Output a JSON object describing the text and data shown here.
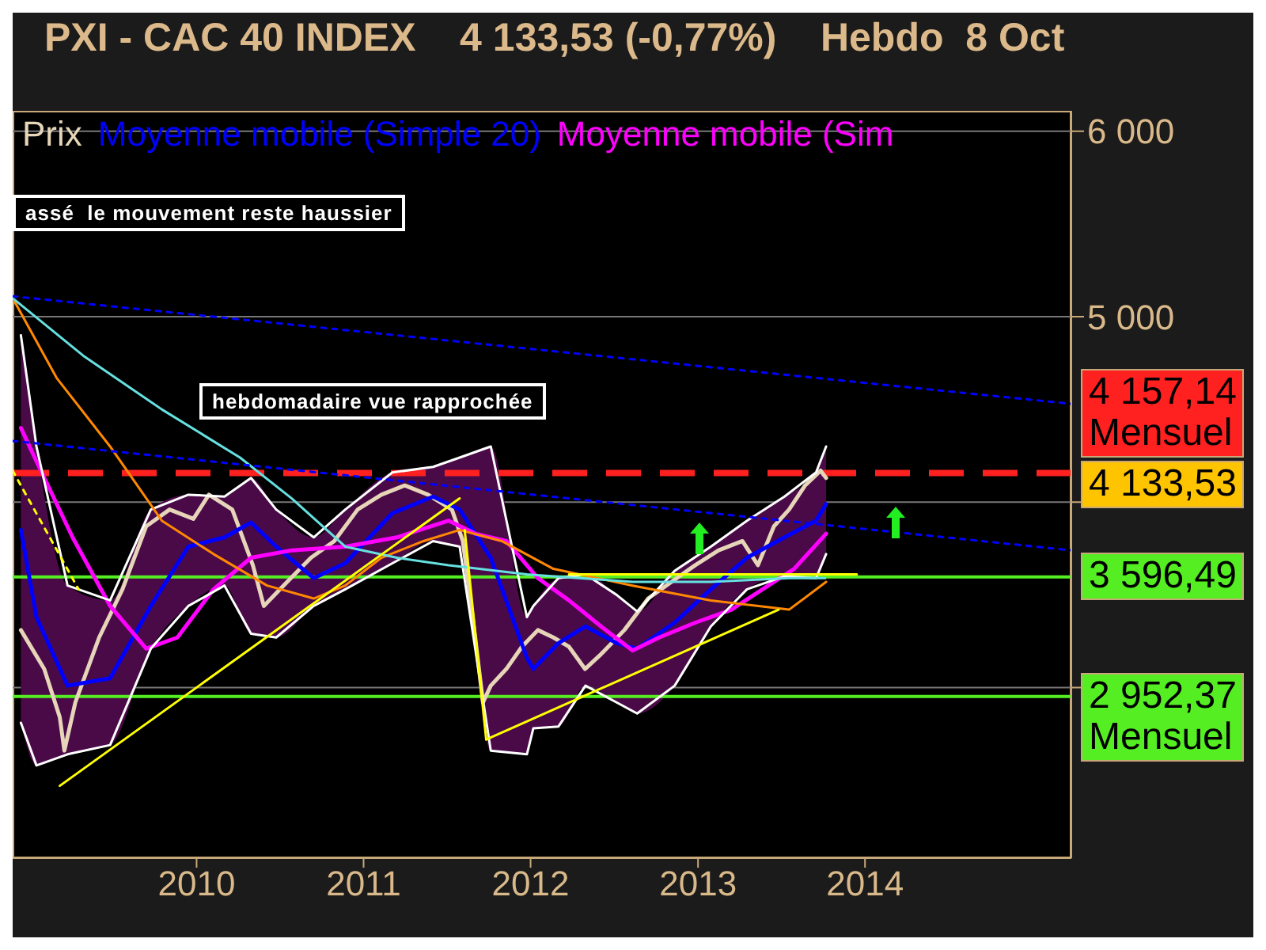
{
  "chart_data": {
    "type": "line",
    "title": "PXI - CAC 40 INDEX    4 133,53 (-0,77%)    Hebdo  8 Oct",
    "xlim": [
      "2008-11-25",
      "2015-03-28"
    ],
    "xticks": [
      "2010",
      "2011",
      "2012",
      "2013",
      "2014"
    ],
    "ylim": [
      2080,
      6110
    ],
    "yticks": [
      {
        "value": 6000,
        "label": "6 000"
      },
      {
        "value": 5000,
        "label": "5 000"
      },
      {
        "value": 4000,
        "label": null
      },
      {
        "value": 3000,
        "label": null
      }
    ],
    "grid": "y",
    "legend": "top",
    "marker": "none",
    "series": [
      {
        "name": "Prix",
        "color": "#e6d5b8",
        "x": [
          "2008-12-13",
          "2009-02-02",
          "2009-03-08",
          "2009-03-18",
          "2009-04-11",
          "2009-06-02",
          "2009-07-23",
          "2009-09-13",
          "2009-11-03",
          "2009-12-25",
          "2010-01-28",
          "2010-03-20",
          "2010-05-04",
          "2010-05-28",
          "2010-07-18",
          "2010-09-08",
          "2010-10-29",
          "2010-12-19",
          "2011-02-09",
          "2011-04-01",
          "2011-05-22",
          "2011-07-13",
          "2011-08-06",
          "2011-09-02",
          "2011-09-19",
          "2011-10-06",
          "2011-11-09",
          "2011-12-13",
          "2012-01-17",
          "2012-02-20",
          "2012-03-25",
          "2012-04-29",
          "2012-06-03",
          "2012-07-24",
          "2012-09-14",
          "2012-11-04",
          "2012-12-26",
          "2013-02-15",
          "2013-04-08",
          "2013-05-12",
          "2013-06-16",
          "2013-07-19",
          "2013-08-23",
          "2013-09-26",
          "2013-10-08"
        ],
        "values": [
          3310,
          3100,
          2840,
          2660,
          2920,
          3270,
          3530,
          3870,
          3960,
          3910,
          4040,
          3960,
          3660,
          3440,
          3570,
          3700,
          3790,
          3960,
          4040,
          4090,
          4040,
          3960,
          3790,
          3270,
          2920,
          3010,
          3100,
          3220,
          3310,
          3270,
          3220,
          3100,
          3180,
          3310,
          3480,
          3570,
          3660,
          3740,
          3790,
          3660,
          3870,
          3960,
          4090,
          4170,
          4130
        ]
      },
      {
        "name": "Moyenne mobile (Simple 20)",
        "color": "#0000ff",
        "x": [
          "2008-12-13",
          "2009-01-16",
          "2009-03-25",
          "2009-06-26",
          "2009-09-23",
          "2009-12-14",
          "2010-03-03",
          "2010-04-30",
          "2010-06-24",
          "2010-09-14",
          "2010-11-22",
          "2011-03-05",
          "2011-06-02",
          "2011-07-30",
          "2011-10-06",
          "2011-12-24",
          "2012-01-07",
          "2012-03-02",
          "2012-04-30",
          "2012-07-07",
          "2012-08-21",
          "2012-11-11",
          "2013-01-29",
          "2013-04-18",
          "2013-07-09",
          "2013-09-16",
          "2013-10-08"
        ],
        "values": [
          3850,
          3380,
          3010,
          3050,
          3440,
          3760,
          3810,
          3890,
          3760,
          3590,
          3670,
          3940,
          4030,
          3960,
          3700,
          3160,
          3100,
          3240,
          3330,
          3240,
          3210,
          3350,
          3530,
          3700,
          3810,
          3900,
          3990
        ],
        "upper": [
          4900,
          4300,
          3550,
          3470,
          3960,
          4040,
          4030,
          4130,
          3960,
          3810,
          3960,
          4160,
          4190,
          4240,
          4300,
          3380,
          3440,
          3590,
          3610,
          3500,
          3410,
          3630,
          3760,
          3900,
          4030,
          4160,
          4300
        ],
        "lower": [
          2810,
          2580,
          2640,
          2690,
          3210,
          3440,
          3550,
          3290,
          3270,
          3440,
          3530,
          3670,
          3790,
          3760,
          2660,
          2640,
          2780,
          2790,
          3010,
          2920,
          2860,
          3010,
          3330,
          3530,
          3600,
          3590,
          3720
        ]
      },
      {
        "name": "Moyenne mobile (Sim",
        "color": "#ff00ff",
        "x": [
          "2008-12-13",
          "2009-01-16",
          "2009-04-05",
          "2009-06-26",
          "2009-09-13",
          "2009-11-20",
          "2010-02-07",
          "2010-04-30",
          "2010-07-28",
          "2010-11-22",
          "2011-03-15",
          "2011-07-06",
          "2011-09-02",
          "2011-11-09",
          "2012-01-17",
          "2012-03-25",
          "2012-06-03",
          "2012-08-11",
          "2012-10-08",
          "2012-12-26",
          "2013-03-15",
          "2013-05-22",
          "2013-07-30",
          "2013-10-08"
        ],
        "values": [
          4400,
          4220,
          3810,
          3440,
          3210,
          3270,
          3530,
          3700,
          3740,
          3760,
          3810,
          3900,
          3830,
          3790,
          3590,
          3470,
          3330,
          3200,
          3270,
          3350,
          3420,
          3530,
          3640,
          3830
        ]
      },
      {
        "color": "#ffffff",
        "x": [
          "2008-12-13",
          "2009-01-16",
          "2009-03-25",
          "2009-06-26",
          "2009-09-23",
          "2009-12-14",
          "2010-03-03",
          "2010-04-30",
          "2010-06-24",
          "2010-09-14",
          "2010-11-22",
          "2011-03-05",
          "2011-06-02",
          "2011-07-30",
          "2011-10-06",
          "2011-12-24",
          "2012-01-07",
          "2012-03-02",
          "2012-04-30",
          "2012-07-07",
          "2012-08-21",
          "2012-11-11",
          "2013-01-29",
          "2013-04-18",
          "2013-07-09",
          "2013-09-16",
          "2013-10-08"
        ],
        "values": [
          4900,
          4300,
          3550,
          3470,
          3960,
          4040,
          4030,
          4130,
          3960,
          3810,
          3960,
          4160,
          4190,
          4240,
          4300,
          3380,
          3440,
          3590,
          3610,
          3500,
          3410,
          3630,
          3760,
          3900,
          4030,
          4160,
          4300
        ]
      },
      {
        "color": "#ffffff",
        "x": [
          "2008-12-13",
          "2009-01-16",
          "2009-03-25",
          "2009-06-26",
          "2009-09-23",
          "2009-12-14",
          "2010-03-03",
          "2010-04-30",
          "2010-06-24",
          "2010-09-14",
          "2010-11-22",
          "2011-03-05",
          "2011-06-02",
          "2011-07-30",
          "2011-10-06",
          "2011-12-24",
          "2012-01-07",
          "2012-03-02",
          "2012-04-30",
          "2012-07-07",
          "2012-08-21",
          "2012-11-11",
          "2013-01-29",
          "2013-04-18",
          "2013-07-09",
          "2013-09-16",
          "2013-10-08"
        ],
        "values": [
          2810,
          2580,
          2640,
          2690,
          3210,
          3440,
          3550,
          3290,
          3270,
          3440,
          3530,
          3670,
          3790,
          3760,
          2660,
          2640,
          2780,
          2790,
          3010,
          2920,
          2860,
          3010,
          3330,
          3530,
          3600,
          3590,
          3720
        ]
      },
      {
        "color": "#ff8800",
        "x": [
          "2008-11-25",
          "2009-03-01",
          "2009-06-26",
          "2009-10-17",
          "2010-02-07",
          "2010-06-04",
          "2010-09-14",
          "2010-11-22",
          "2011-02-09",
          "2011-05-12",
          "2011-07-30",
          "2011-10-30",
          "2012-02-20",
          "2012-08-11",
          "2013-01-29",
          "2013-07-19",
          "2013-10-08"
        ],
        "values": [
          5100,
          4670,
          4300,
          3900,
          3720,
          3550,
          3480,
          3550,
          3700,
          3790,
          3850,
          3790,
          3640,
          3550,
          3470,
          3420,
          3570
        ]
      },
      {
        "color": "#66e0e0",
        "x": [
          "2008-11-25",
          "2009-04-28",
          "2009-10-17",
          "2010-04-06",
          "2010-07-28",
          "2010-11-22",
          "2011-03-15",
          "2011-07-06",
          "2011-12-24",
          "2012-02-20",
          "2012-08-11",
          "2013-01-29",
          "2013-07-19",
          "2013-10-06"
        ],
        "values": [
          5100,
          4790,
          4500,
          4240,
          4020,
          3760,
          3700,
          3660,
          3610,
          3600,
          3570,
          3570,
          3590,
          3590
        ]
      },
      {
        "color": "#0000ff",
        "line_style": "dotted",
        "x": [
          "2008-11-25",
          "2015-03-28"
        ],
        "values": [
          5110,
          4530
        ]
      },
      {
        "color": "#0000ff",
        "line_style": "dotted",
        "x": [
          "2008-11-25",
          "2015-03-28"
        ],
        "values": [
          4330,
          3740
        ]
      },
      {
        "color": "#ffff00",
        "line_style": "dotted",
        "x": [
          "2008-11-25",
          "2009-04-18"
        ],
        "values": [
          4170,
          3530
        ]
      },
      {
        "color": "#ffff00",
        "x": [
          "2009-03-08",
          "2011-07-30"
        ],
        "values": [
          2470,
          4020
        ]
      },
      {
        "color": "#ffff00",
        "x": [
          "2011-08-10",
          "2011-09-26"
        ],
        "values": [
          3850,
          2720
        ]
      },
      {
        "color": "#ffff00",
        "x": [
          "2011-09-26",
          "2013-06-26"
        ],
        "values": [
          2720,
          3420
        ]
      },
      {
        "color": "#ffff00",
        "x": [
          "2012-03-25",
          "2013-12-14"
        ],
        "values": [
          3610,
          3610
        ]
      }
    ],
    "ref_lines": [
      {
        "axis": "y",
        "value": 4157.14,
        "label": "4 157,14 Mensuel",
        "color": "#ff2020",
        "line_style": "dashed"
      },
      {
        "axis": "y",
        "value": 3596.49,
        "label": "3 596,49",
        "color": "#55ee22"
      },
      {
        "axis": "y",
        "value": 2952.37,
        "label": "2 952,37 Mensuel",
        "color": "#55ee22"
      }
    ],
    "annotations": [
      "assé  le mouvement reste haussier",
      "hebdomadaire vue rapprochée",
      "4 133,53"
    ]
  }
}
